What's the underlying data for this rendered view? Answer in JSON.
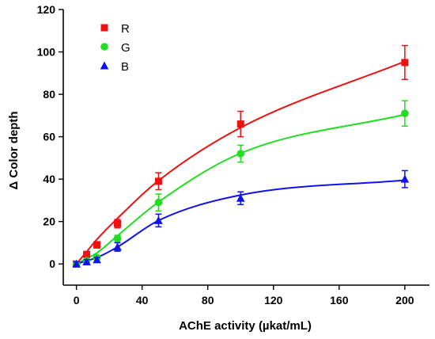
{
  "chart_data": {
    "type": "scatter",
    "title": "",
    "xlabel": "AChE activity (µkat/mL)",
    "ylabel": "Δ Color depth",
    "xlim": [
      -8,
      215
    ],
    "ylim": [
      -10,
      120
    ],
    "xticks": [
      0,
      40,
      80,
      120,
      160,
      200
    ],
    "yticks": [
      0,
      20,
      40,
      60,
      80,
      100,
      120
    ],
    "xtick_labels": [
      "0",
      "40",
      "80",
      "120",
      "160",
      "200"
    ],
    "ytick_labels": [
      "0",
      "20",
      "40",
      "60",
      "80",
      "100",
      "120"
    ],
    "legend_position": "top-left",
    "grid": false,
    "x": [
      0,
      6.25,
      12.5,
      25,
      50,
      100,
      200
    ],
    "series": [
      {
        "name": "R",
        "color": "#ee1111",
        "marker": "square",
        "values": [
          0,
          4.5,
          9,
          19,
          39,
          66,
          95
        ],
        "errors": [
          1,
          1,
          1.5,
          2,
          4,
          6,
          8
        ],
        "fit": [
          0,
          5.8,
          11.6,
          21.5,
          39.3,
          64.3,
          95.5
        ]
      },
      {
        "name": "G",
        "color": "#22dd22",
        "marker": "circle",
        "values": [
          0,
          1.5,
          3,
          12,
          29,
          52,
          71
        ],
        "errors": [
          1,
          1,
          1,
          1.5,
          4,
          4,
          6
        ],
        "fit": [
          0,
          2.6,
          5.2,
          13.3,
          29.2,
          52.2,
          70.5
        ]
      },
      {
        "name": "B",
        "color": "#1111ee",
        "marker": "triangle",
        "values": [
          0,
          1,
          2,
          8,
          20.5,
          31,
          40
        ],
        "errors": [
          1,
          1,
          1,
          2,
          3,
          3,
          4
        ],
        "fit": [
          0,
          1.5,
          3,
          8,
          20.5,
          32.5,
          39.5
        ]
      }
    ]
  }
}
